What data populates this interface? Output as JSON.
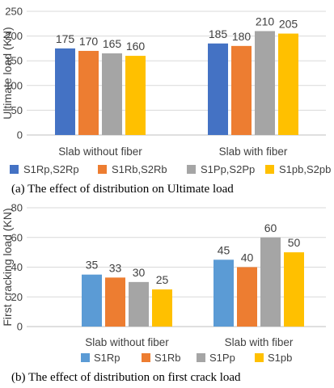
{
  "chart_data": [
    {
      "type": "bar",
      "title": "",
      "caption": "(a) The effect of distribution on Ultimate load",
      "ylabel": "Ultimate load (KN)",
      "xlabel": "",
      "ylim": [
        0,
        250
      ],
      "yticks": [
        0,
        50,
        100,
        150,
        200,
        250
      ],
      "grid": true,
      "legend_position": "bottom",
      "categories": [
        "Slab without fiber",
        "Slab with fiber"
      ],
      "series": [
        {
          "name": "S1Rp,S2Rp",
          "color": "#4472C4",
          "values": [
            175,
            185
          ]
        },
        {
          "name": "S1Rb,S2Rb",
          "color": "#ED7D31",
          "values": [
            170,
            180
          ]
        },
        {
          "name": "S1Pp,S2Pp",
          "color": "#A5A5A5",
          "values": [
            165,
            210
          ]
        },
        {
          "name": "S1pb,S2pb",
          "color": "#FFC000",
          "values": [
            160,
            205
          ]
        }
      ]
    },
    {
      "type": "bar",
      "title": "",
      "caption": "(b) The effect of distribution on first crack load",
      "ylabel": "First cracking load (KN)",
      "xlabel": "",
      "ylim": [
        0,
        80
      ],
      "yticks": [
        0,
        20,
        40,
        60,
        80
      ],
      "grid": true,
      "legend_position": "bottom",
      "categories": [
        "Slab without fiber",
        "Slab with fiber"
      ],
      "series": [
        {
          "name": "S1Rp",
          "color": "#5B9BD5",
          "values": [
            35,
            45
          ]
        },
        {
          "name": "S1Rb",
          "color": "#ED7D31",
          "values": [
            33,
            40
          ]
        },
        {
          "name": "S1Pp",
          "color": "#A5A5A5",
          "values": [
            30,
            60
          ]
        },
        {
          "name": "S1pb",
          "color": "#FFC000",
          "values": [
            25,
            50
          ]
        }
      ]
    }
  ]
}
